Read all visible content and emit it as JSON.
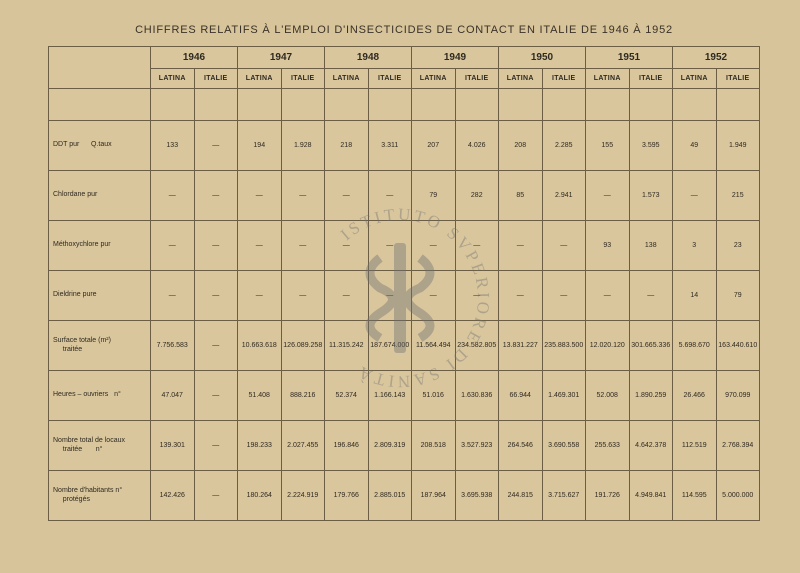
{
  "title": "CHIFFRES RELATIFS À L'EMPLOI D'INSECTICIDES DE CONTACT EN ITALIE DE 1946 À 1952",
  "years": [
    "1946",
    "1947",
    "1948",
    "1949",
    "1950",
    "1951",
    "1952"
  ],
  "subcols": [
    "LATINA",
    "ITALIE"
  ],
  "rows": [
    {
      "label": "DDT pur      Q.taux",
      "cells": [
        "133",
        "—",
        "194",
        "1.928",
        "218",
        "3.311",
        "207",
        "4.026",
        "208",
        "2.285",
        "155",
        "3.595",
        "49",
        "1.949"
      ]
    },
    {
      "label": "Chlordane pur",
      "cells": [
        "—",
        "—",
        "—",
        "—",
        "—",
        "—",
        "79",
        "282",
        "85",
        "2.941",
        "—",
        "1.573",
        "—",
        "215"
      ]
    },
    {
      "label": "Méthoxychlore pur",
      "cells": [
        "—",
        "—",
        "—",
        "—",
        "—",
        "—",
        "—",
        "—",
        "—",
        "—",
        "93",
        "138",
        "3",
        "23"
      ]
    },
    {
      "label": "Dieldrine pure",
      "cells": [
        "—",
        "—",
        "—",
        "—",
        "—",
        "—",
        "—",
        "—",
        "—",
        "—",
        "—",
        "—",
        "14",
        "79"
      ]
    },
    {
      "label": "Surface totale (m²)\n     traitée",
      "cells": [
        "7.756.583",
        "—",
        "10.663.618",
        "126.089.258",
        "11.315.242",
        "187.674.000",
        "11.564.494",
        "234.582.805",
        "13.831.227",
        "235.883.500",
        "12.020.120",
        "301.665.336",
        "5.698.670",
        "163.440.610"
      ]
    },
    {
      "label": "Heures – ouvriers   n°",
      "cells": [
        "47.047",
        "—",
        "51.408",
        "888.216",
        "52.374",
        "1.166.143",
        "51.016",
        "1.630.836",
        "66.944",
        "1.469.301",
        "52.008",
        "1.890.259",
        "26.466",
        "970.099"
      ]
    },
    {
      "label": "Nombre total de locaux\n     traitée       n°",
      "cells": [
        "139.301",
        "—",
        "198.233",
        "2.027.455",
        "196.846",
        "2.809.319",
        "208.518",
        "3.527.923",
        "264.546",
        "3.690.558",
        "255.633",
        "4.642.378",
        "112.519",
        "2.768.394"
      ]
    },
    {
      "label": "Nombre d'habitants n°\n     protégés",
      "cells": [
        "142.426",
        "—",
        "180.264",
        "2.224.919",
        "179.766",
        "2.885.015",
        "187.964",
        "3.695.938",
        "244.815",
        "3.715.627",
        "191.726",
        "4.949.841",
        "114.595",
        "5.000.000"
      ]
    }
  ],
  "colors": {
    "background": "#d8c49a",
    "border": "#6b5e45",
    "text": "#2f2a20",
    "watermark": "#6e6e6e"
  },
  "watermark_text": "ISTITUTO SVPERIORE DI SANITÀ"
}
